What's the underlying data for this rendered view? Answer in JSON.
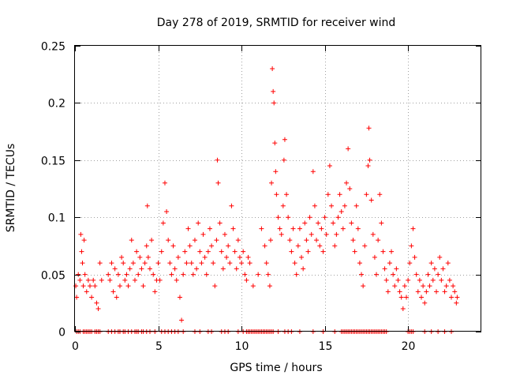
{
  "chart_data": {
    "type": "scatter",
    "title": "Day 278 of 2019, SRMTID for receiver wind",
    "xlabel": "GPS time / hours",
    "ylabel": "SRMTID / TECUs",
    "xlim": [
      0,
      24.4
    ],
    "ylim": [
      0,
      0.25
    ],
    "x_ticks": [
      0,
      5,
      10,
      15,
      20
    ],
    "y_ticks": [
      0,
      0.05,
      0.1,
      0.15,
      0.2,
      0.25
    ],
    "x_tick_labels": [
      "0",
      "5",
      "10",
      "15",
      "20"
    ],
    "y_tick_labels": [
      "0",
      "0.05",
      "0.1",
      "0.15",
      "0.2",
      "0.25"
    ],
    "grid": true,
    "marker": "+",
    "series_color": "#ff0000",
    "series": [
      {
        "name": "SRMTID",
        "points": [
          [
            0.05,
            0.04
          ],
          [
            0.1,
            0.03
          ],
          [
            0.2,
            0.05
          ],
          [
            0.3,
            0.045
          ],
          [
            0.35,
            0.085
          ],
          [
            0.4,
            0.07
          ],
          [
            0.45,
            0.06
          ],
          [
            0.5,
            0.04
          ],
          [
            0.55,
            0.08
          ],
          [
            0.6,
            0.05
          ],
          [
            0.7,
            0.035
          ],
          [
            0.8,
            0.045
          ],
          [
            0.9,
            0.04
          ],
          [
            1.0,
            0.03
          ],
          [
            1.1,
            0.045
          ],
          [
            1.2,
            0.04
          ],
          [
            1.3,
            0.025
          ],
          [
            1.4,
            0.02
          ],
          [
            1.5,
            0.06
          ],
          [
            1.6,
            0.045
          ],
          [
            2.0,
            0.05
          ],
          [
            2.1,
            0.045
          ],
          [
            2.2,
            0.06
          ],
          [
            2.3,
            0.035
          ],
          [
            2.4,
            0.055
          ],
          [
            2.5,
            0.03
          ],
          [
            2.6,
            0.05
          ],
          [
            2.7,
            0.04
          ],
          [
            2.8,
            0.065
          ],
          [
            2.9,
            0.06
          ],
          [
            3.0,
            0.045
          ],
          [
            3.1,
            0.05
          ],
          [
            3.2,
            0.04
          ],
          [
            3.3,
            0.055
          ],
          [
            3.4,
            0.08
          ],
          [
            3.5,
            0.06
          ],
          [
            3.6,
            0.045
          ],
          [
            3.7,
            0.07
          ],
          [
            3.8,
            0.05
          ],
          [
            3.9,
            0.065
          ],
          [
            4.0,
            0.055
          ],
          [
            4.1,
            0.04
          ],
          [
            4.2,
            0.06
          ],
          [
            4.3,
            0.075
          ],
          [
            4.35,
            0.11
          ],
          [
            4.4,
            0.065
          ],
          [
            4.5,
            0.055
          ],
          [
            4.6,
            0.08
          ],
          [
            4.7,
            0.05
          ],
          [
            4.8,
            0.035
          ],
          [
            4.9,
            0.045
          ],
          [
            5.0,
            0.06
          ],
          [
            5.1,
            0.045
          ],
          [
            5.2,
            0.07
          ],
          [
            5.3,
            0.095
          ],
          [
            5.4,
            0.13
          ],
          [
            5.5,
            0.105
          ],
          [
            5.6,
            0.08
          ],
          [
            5.7,
            0.06
          ],
          [
            5.8,
            0.05
          ],
          [
            5.9,
            0.075
          ],
          [
            6.0,
            0.055
          ],
          [
            6.1,
            0.045
          ],
          [
            6.2,
            0.065
          ],
          [
            6.3,
            0.03
          ],
          [
            6.4,
            0.01
          ],
          [
            6.5,
            0.05
          ],
          [
            6.6,
            0.07
          ],
          [
            6.7,
            0.06
          ],
          [
            6.8,
            0.09
          ],
          [
            6.9,
            0.075
          ],
          [
            7.0,
            0.06
          ],
          [
            7.1,
            0.05
          ],
          [
            7.2,
            0.08
          ],
          [
            7.3,
            0.055
          ],
          [
            7.4,
            0.095
          ],
          [
            7.5,
            0.07
          ],
          [
            7.6,
            0.06
          ],
          [
            7.7,
            0.085
          ],
          [
            7.8,
            0.065
          ],
          [
            7.9,
            0.05
          ],
          [
            8.0,
            0.07
          ],
          [
            8.1,
            0.09
          ],
          [
            8.2,
            0.075
          ],
          [
            8.3,
            0.06
          ],
          [
            8.4,
            0.04
          ],
          [
            8.5,
            0.08
          ],
          [
            8.55,
            0.15
          ],
          [
            8.6,
            0.13
          ],
          [
            8.7,
            0.095
          ],
          [
            8.8,
            0.07
          ],
          [
            8.9,
            0.055
          ],
          [
            9.0,
            0.085
          ],
          [
            9.1,
            0.065
          ],
          [
            9.2,
            0.075
          ],
          [
            9.3,
            0.06
          ],
          [
            9.4,
            0.11
          ],
          [
            9.5,
            0.09
          ],
          [
            9.6,
            0.07
          ],
          [
            9.7,
            0.055
          ],
          [
            9.8,
            0.08
          ],
          [
            9.9,
            0.065
          ],
          [
            10.0,
            0.06
          ],
          [
            10.1,
            0.07
          ],
          [
            10.2,
            0.05
          ],
          [
            10.3,
            0.045
          ],
          [
            10.4,
            0.065
          ],
          [
            10.5,
            0.06
          ],
          [
            10.7,
            0.04
          ],
          [
            11.0,
            0.05
          ],
          [
            11.2,
            0.09
          ],
          [
            11.4,
            0.075
          ],
          [
            11.5,
            0.06
          ],
          [
            11.6,
            0.05
          ],
          [
            11.7,
            0.04
          ],
          [
            11.75,
            0.08
          ],
          [
            11.8,
            0.13
          ],
          [
            11.85,
            0.23
          ],
          [
            11.9,
            0.21
          ],
          [
            11.95,
            0.2
          ],
          [
            12.0,
            0.165
          ],
          [
            12.05,
            0.14
          ],
          [
            12.1,
            0.12
          ],
          [
            12.2,
            0.1
          ],
          [
            12.3,
            0.09
          ],
          [
            12.4,
            0.085
          ],
          [
            12.5,
            0.11
          ],
          [
            12.55,
            0.15
          ],
          [
            12.6,
            0.168
          ],
          [
            12.7,
            0.12
          ],
          [
            12.8,
            0.1
          ],
          [
            12.9,
            0.08
          ],
          [
            13.0,
            0.07
          ],
          [
            13.1,
            0.09
          ],
          [
            13.2,
            0.06
          ],
          [
            13.3,
            0.05
          ],
          [
            13.4,
            0.075
          ],
          [
            13.5,
            0.09
          ],
          [
            13.6,
            0.065
          ],
          [
            13.7,
            0.055
          ],
          [
            13.8,
            0.095
          ],
          [
            13.9,
            0.08
          ],
          [
            14.0,
            0.07
          ],
          [
            14.1,
            0.1
          ],
          [
            14.2,
            0.085
          ],
          [
            14.3,
            0.14
          ],
          [
            14.4,
            0.11
          ],
          [
            14.5,
            0.08
          ],
          [
            14.6,
            0.095
          ],
          [
            14.7,
            0.075
          ],
          [
            14.8,
            0.09
          ],
          [
            14.9,
            0.07
          ],
          [
            15.0,
            0.1
          ],
          [
            15.1,
            0.085
          ],
          [
            15.2,
            0.12
          ],
          [
            15.3,
            0.145
          ],
          [
            15.4,
            0.11
          ],
          [
            15.5,
            0.095
          ],
          [
            15.6,
            0.075
          ],
          [
            15.7,
            0.085
          ],
          [
            15.8,
            0.1
          ],
          [
            15.9,
            0.12
          ],
          [
            16.0,
            0.105
          ],
          [
            16.1,
            0.09
          ],
          [
            16.2,
            0.11
          ],
          [
            16.3,
            0.13
          ],
          [
            16.4,
            0.16
          ],
          [
            16.5,
            0.125
          ],
          [
            16.6,
            0.095
          ],
          [
            16.7,
            0.08
          ],
          [
            16.8,
            0.07
          ],
          [
            16.9,
            0.11
          ],
          [
            17.0,
            0.09
          ],
          [
            17.1,
            0.06
          ],
          [
            17.2,
            0.05
          ],
          [
            17.3,
            0.04
          ],
          [
            17.4,
            0.075
          ],
          [
            17.5,
            0.12
          ],
          [
            17.6,
            0.145
          ],
          [
            17.65,
            0.178
          ],
          [
            17.7,
            0.15
          ],
          [
            17.8,
            0.115
          ],
          [
            17.9,
            0.085
          ],
          [
            18.0,
            0.065
          ],
          [
            18.1,
            0.05
          ],
          [
            18.2,
            0.08
          ],
          [
            18.3,
            0.12
          ],
          [
            18.4,
            0.095
          ],
          [
            18.5,
            0.07
          ],
          [
            18.6,
            0.055
          ],
          [
            18.7,
            0.045
          ],
          [
            18.8,
            0.035
          ],
          [
            18.9,
            0.06
          ],
          [
            19.0,
            0.07
          ],
          [
            19.1,
            0.05
          ],
          [
            19.2,
            0.04
          ],
          [
            19.3,
            0.055
          ],
          [
            19.4,
            0.045
          ],
          [
            19.5,
            0.035
          ],
          [
            19.6,
            0.03
          ],
          [
            19.7,
            0.02
          ],
          [
            19.8,
            0.04
          ],
          [
            19.9,
            0.03
          ],
          [
            20.0,
            0.045
          ],
          [
            20.1,
            0.06
          ],
          [
            20.2,
            0.075
          ],
          [
            20.3,
            0.09
          ],
          [
            20.4,
            0.065
          ],
          [
            20.5,
            0.05
          ],
          [
            20.6,
            0.035
          ],
          [
            20.7,
            0.045
          ],
          [
            20.8,
            0.03
          ],
          [
            20.9,
            0.04
          ],
          [
            21.0,
            0.025
          ],
          [
            21.1,
            0.035
          ],
          [
            21.2,
            0.05
          ],
          [
            21.3,
            0.04
          ],
          [
            21.4,
            0.06
          ],
          [
            21.5,
            0.045
          ],
          [
            21.6,
            0.055
          ],
          [
            21.7,
            0.035
          ],
          [
            21.8,
            0.05
          ],
          [
            21.9,
            0.065
          ],
          [
            22.0,
            0.045
          ],
          [
            22.1,
            0.055
          ],
          [
            22.2,
            0.035
          ],
          [
            22.3,
            0.04
          ],
          [
            22.4,
            0.06
          ],
          [
            22.5,
            0.045
          ],
          [
            22.6,
            0.03
          ],
          [
            22.7,
            0.04
          ],
          [
            22.8,
            0.035
          ],
          [
            22.9,
            0.025
          ],
          [
            22.95,
            0.03
          ]
        ],
        "zero_x": [
          0.1,
          0.2,
          0.3,
          0.5,
          0.6,
          0.7,
          0.8,
          0.9,
          1.0,
          1.2,
          1.3,
          1.4,
          1.5,
          2.0,
          2.2,
          2.4,
          2.6,
          2.7,
          2.9,
          3.0,
          3.2,
          3.4,
          3.6,
          3.7,
          3.8,
          4.0,
          4.1,
          4.3,
          4.5,
          4.8,
          5.2,
          5.4,
          5.6,
          5.8,
          6.0,
          6.2,
          6.5,
          7.2,
          7.5,
          8.0,
          8.2,
          8.8,
          9.0,
          9.2,
          9.8,
          10.1,
          10.3,
          10.4,
          10.5,
          10.6,
          10.7,
          10.8,
          10.9,
          11.0,
          11.1,
          11.2,
          11.3,
          11.4,
          11.5,
          11.6,
          11.7,
          11.8,
          11.9,
          12.2,
          12.6,
          12.8,
          13.0,
          13.5,
          14.3,
          14.9,
          15.6,
          16.0,
          16.1,
          16.2,
          16.3,
          16.4,
          16.5,
          16.6,
          16.7,
          16.8,
          16.9,
          17.0,
          17.1,
          17.2,
          17.3,
          17.4,
          17.5,
          17.6,
          17.7,
          17.8,
          17.9,
          18.0,
          18.1,
          18.2,
          18.3,
          18.4,
          18.5,
          18.6,
          18.7,
          20.0,
          20.1,
          20.2,
          20.3,
          21.0,
          21.4,
          21.8,
          22.2,
          22.6
        ]
      }
    ]
  }
}
